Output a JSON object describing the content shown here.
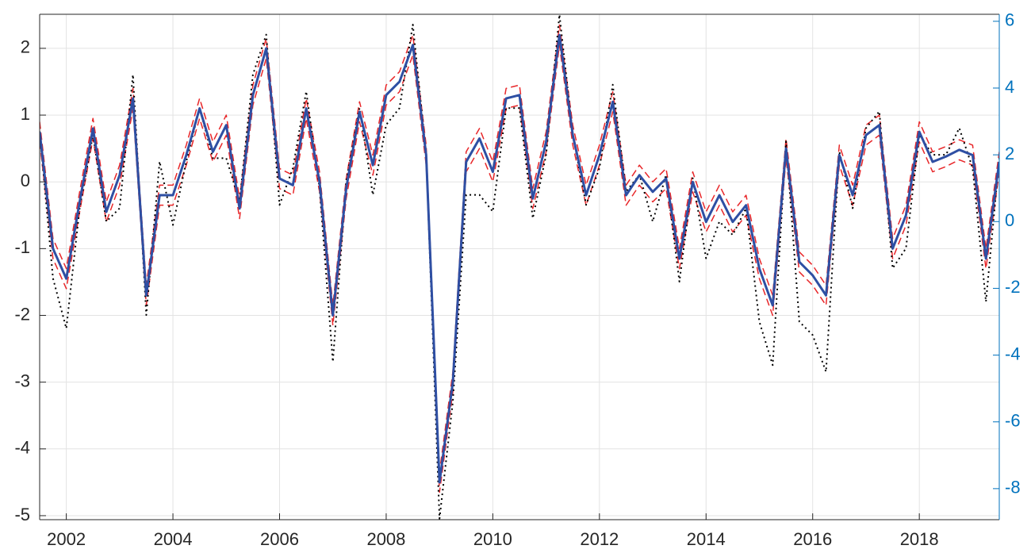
{
  "chart_data": {
    "type": "line",
    "x": [
      2001.5,
      2001.75,
      2002,
      2002.25,
      2002.5,
      2002.75,
      2003,
      2003.25,
      2003.5,
      2003.75,
      2004,
      2004.25,
      2004.5,
      2004.75,
      2005,
      2005.25,
      2005.5,
      2005.75,
      2006,
      2006.25,
      2006.5,
      2006.75,
      2007,
      2007.25,
      2007.5,
      2007.75,
      2008,
      2008.25,
      2008.5,
      2008.75,
      2009,
      2009.25,
      2009.5,
      2009.75,
      2010,
      2010.25,
      2010.5,
      2010.75,
      2011,
      2011.25,
      2011.5,
      2011.75,
      2012,
      2012.25,
      2012.5,
      2012.75,
      2013,
      2013.25,
      2013.5,
      2013.75,
      2014,
      2014.25,
      2014.5,
      2014.75,
      2015,
      2015.25,
      2015.5,
      2015.75,
      2016,
      2016.25,
      2016.5,
      2016.75,
      2017,
      2017.25,
      2017.5,
      2017.75,
      2018,
      2018.25,
      2018.5,
      2018.75,
      2019,
      2019.25,
      2019.5
    ],
    "series": [
      {
        "color": "#e8272a",
        "style": "dashed",
        "width": 1.5,
        "values": [
          0.9,
          -0.85,
          -1.3,
          -0.15,
          0.95,
          -0.3,
          0.25,
          1.4,
          -1.55,
          -0.05,
          -0.05,
          0.55,
          1.25,
          0.6,
          1.0,
          -0.25,
          1.45,
          2.15,
          0.2,
          0.1,
          1.25,
          0.15,
          -1.85,
          0.05,
          1.2,
          0.4,
          1.45,
          1.65,
          2.2,
          0.55,
          -4.35,
          -2.85,
          0.45,
          0.8,
          0.3,
          1.4,
          1.45,
          -0.1,
          0.75,
          2.35,
          0.85,
          -0.05,
          0.55,
          1.35,
          -0.05,
          0.25,
          0.0,
          0.2,
          -1.0,
          0.15,
          -0.45,
          -0.05,
          -0.45,
          -0.2,
          -1.15,
          -1.7,
          0.65,
          -1.05,
          -1.25,
          -1.55,
          0.55,
          -0.05,
          0.85,
          1.0,
          -0.85,
          -0.35,
          0.9,
          0.45,
          0.53,
          0.63,
          0.55,
          -1.0,
          0.45
        ]
      },
      {
        "color": "#e8272a",
        "style": "dashed",
        "width": 1.5,
        "values": [
          0.6,
          -1.15,
          -1.6,
          -0.45,
          0.65,
          -0.6,
          -0.05,
          1.1,
          -1.85,
          -0.35,
          -0.35,
          0.25,
          0.95,
          0.3,
          0.7,
          -0.55,
          1.15,
          1.85,
          -0.1,
          -0.2,
          0.95,
          -0.15,
          -2.15,
          -0.25,
          0.9,
          0.1,
          1.15,
          1.35,
          1.9,
          0.25,
          -4.65,
          -3.15,
          0.15,
          0.5,
          0.0,
          1.1,
          1.15,
          -0.4,
          0.45,
          2.05,
          0.55,
          -0.35,
          0.25,
          1.05,
          -0.35,
          -0.05,
          -0.3,
          -0.1,
          -1.3,
          -0.15,
          -0.75,
          -0.35,
          -0.75,
          -0.5,
          -1.45,
          -2.0,
          0.35,
          -1.35,
          -1.55,
          -1.85,
          0.25,
          -0.35,
          0.55,
          0.7,
          -1.15,
          -0.65,
          0.6,
          0.15,
          0.23,
          0.33,
          0.25,
          -1.3,
          0.15
        ]
      },
      {
        "color": "#000000",
        "style": "dotted",
        "width": 2,
        "axis": "y2",
        "values": [
          2.7,
          -1.7,
          -3.2,
          0.4,
          2.6,
          0,
          0.4,
          4.4,
          -2.8,
          1.8,
          -0.1,
          1.8,
          3.4,
          1.9,
          1.9,
          0.6,
          4.4,
          5.6,
          0.5,
          1.6,
          3.9,
          1.0,
          -4.2,
          1.2,
          3.4,
          0.8,
          2.9,
          3.4,
          5.9,
          2.0,
          -8.9,
          -5.4,
          0.8,
          0.8,
          0.3,
          3.4,
          3.4,
          0.1,
          2.0,
          6.2,
          2.6,
          0.5,
          1.6,
          4.1,
          0.9,
          1.4,
          0,
          1.4,
          -1.8,
          1.3,
          -1.1,
          0,
          -0.4,
          0.4,
          -3.0,
          -4.3,
          2.4,
          -3.0,
          -3.4,
          -4.5,
          2.1,
          0.4,
          2.8,
          3.3,
          -1.4,
          -0.8,
          2.6,
          2.0,
          2.0,
          2.8,
          1.6,
          -2.4,
          1.9
        ]
      },
      {
        "color": "#2e4fa3",
        "style": "solid",
        "width": 3,
        "values": [
          0.75,
          -1.0,
          -1.45,
          -0.3,
          0.8,
          -0.45,
          0.1,
          1.25,
          -1.7,
          -0.2,
          -0.2,
          0.4,
          1.1,
          0.45,
          0.85,
          -0.4,
          1.3,
          2.0,
          0.05,
          -0.05,
          1.1,
          0.0,
          -2.0,
          -0.1,
          1.05,
          0.25,
          1.3,
          1.5,
          2.05,
          0.4,
          -4.5,
          -3.0,
          0.3,
          0.65,
          0.15,
          1.25,
          1.3,
          -0.25,
          0.6,
          2.2,
          0.7,
          -0.2,
          0.4,
          1.2,
          -0.2,
          0.1,
          -0.15,
          0.05,
          -1.15,
          0.0,
          -0.6,
          -0.2,
          -0.6,
          -0.35,
          -1.3,
          -1.85,
          0.5,
          -1.2,
          -1.4,
          -1.7,
          0.4,
          -0.2,
          0.7,
          0.85,
          -1.0,
          -0.5,
          0.75,
          0.3,
          0.38,
          0.48,
          0.4,
          -1.15,
          0.3
        ]
      }
    ],
    "xlim": [
      2001.5,
      2019.5
    ],
    "xticks": [
      2002,
      2004,
      2006,
      2008,
      2010,
      2012,
      2014,
      2016,
      2018
    ],
    "ylim": [
      -5.06,
      2.51
    ],
    "yticks": [
      -5,
      -4,
      -3,
      -2,
      -1,
      0,
      1,
      2
    ],
    "y2lim": [
      -8.93,
      6.21
    ],
    "y2ticks": [
      -8,
      -6,
      -4,
      -2,
      0,
      2,
      4,
      6
    ],
    "y2color": "#0072bd",
    "grid": true
  }
}
